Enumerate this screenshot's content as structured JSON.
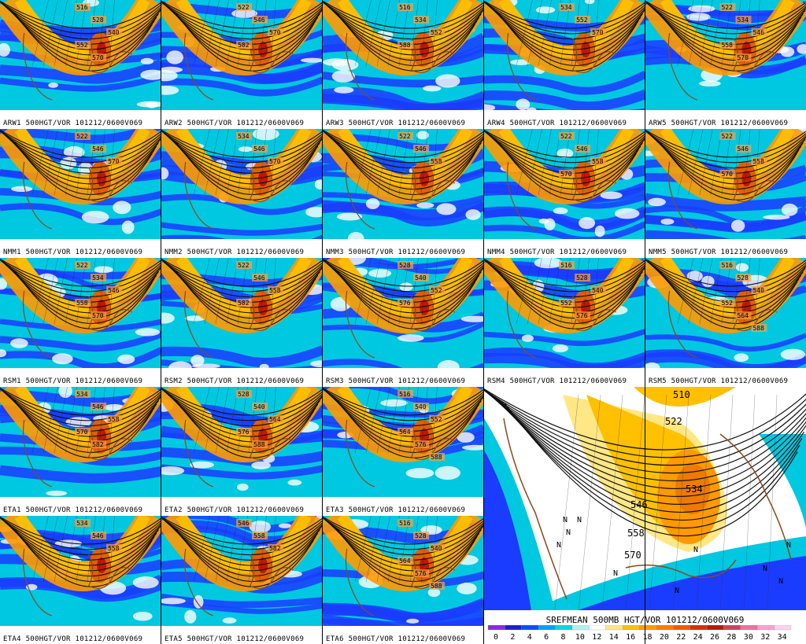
{
  "small_panels": [
    {
      "label": "ARW1 500HGT/VOR 101212/0600V069",
      "contours": [
        "516",
        "528",
        "540",
        "552",
        "570"
      ]
    },
    {
      "label": "ARW2 500HGT/VOR 101212/0600V069",
      "contours": [
        "522",
        "546",
        "570",
        "582"
      ]
    },
    {
      "label": "ARW3 500HGT/VOR 101212/0600V069",
      "contours": [
        "516",
        "534",
        "552",
        "588"
      ]
    },
    {
      "label": "ARW4 500HGT/VOR 101212/0600V069",
      "contours": [
        "534",
        "552",
        "570"
      ]
    },
    {
      "label": "ARW5 500HGT/VOR 101212/0600V069",
      "contours": [
        "522",
        "534",
        "546",
        "558",
        "570"
      ]
    },
    {
      "label": "NMM1 500HGT/VOR 101212/0600V069",
      "contours": [
        "522",
        "546",
        "570"
      ]
    },
    {
      "label": "NMM2 500HGT/VOR 101212/0600V069",
      "contours": [
        "534",
        "546",
        "570"
      ]
    },
    {
      "label": "NMM3 500HGT/VOR 101212/0600V069",
      "contours": [
        "522",
        "546",
        "558"
      ]
    },
    {
      "label": "NMM4 500HGT/VOR 101212/0600V069",
      "contours": [
        "522",
        "546",
        "558",
        "570"
      ]
    },
    {
      "label": "NMM5 500HGT/VOR 101212/0600V069",
      "contours": [
        "522",
        "546",
        "558",
        "570"
      ]
    },
    {
      "label": "RSM1 500HGT/VOR 101212/0600V069",
      "contours": [
        "522",
        "534",
        "546",
        "558",
        "570"
      ]
    },
    {
      "label": "RSM2 500HGT/VOR 101212/0600V069",
      "contours": [
        "522",
        "546",
        "558",
        "582"
      ]
    },
    {
      "label": "RSM3 500HGT/VOR 101212/0600V069",
      "contours": [
        "528",
        "540",
        "552",
        "576"
      ]
    },
    {
      "label": "RSM4 500HGT/VOR 101212/0600V069",
      "contours": [
        "516",
        "528",
        "540",
        "552",
        "576"
      ]
    },
    {
      "label": "RSM5 500HGT/VOR 101212/0600V069",
      "contours": [
        "516",
        "528",
        "540",
        "552",
        "564",
        "588"
      ]
    },
    {
      "label": "ETA1 500HGT/VOR 101212/0600V069",
      "contours": [
        "534",
        "546",
        "558",
        "570",
        "582"
      ]
    },
    {
      "label": "ETA2 500HGT/VOR 101212/0600V069",
      "contours": [
        "528",
        "540",
        "564",
        "576",
        "588"
      ]
    },
    {
      "label": "ETA3 500HGT/VOR 101212/0600V069",
      "contours": [
        "516",
        "540",
        "552",
        "564",
        "576",
        "588"
      ]
    },
    {
      "label": "ETA4 500HGT/VOR 101212/0600V069",
      "contours": [
        "534",
        "546",
        "558"
      ]
    },
    {
      "label": "ETA5 500HGT/VOR 101212/0600V069",
      "contours": [
        "546",
        "558",
        "582"
      ]
    },
    {
      "label": "ETA6 500HGT/VOR 101212/0600V069",
      "contours": [
        "516",
        "528",
        "540",
        "564",
        "576",
        "588"
      ]
    }
  ],
  "mean_panel": {
    "title": "SREFMEAN 500MB HGT/VOR 101212/0600V069",
    "contours": [
      "510",
      "522",
      "534",
      "546",
      "558",
      "570"
    ],
    "markers": [
      "N",
      "N",
      "N",
      "N",
      "N",
      "N",
      "N",
      "N",
      "N",
      "N"
    ]
  },
  "colorbar": {
    "ticks": [
      "0",
      "2",
      "4",
      "6",
      "8",
      "10",
      "12",
      "14",
      "16",
      "18",
      "20",
      "22",
      "24",
      "26",
      "28",
      "30",
      "32",
      "34"
    ],
    "colors": [
      "#8a2be2",
      "#1e1ed0",
      "#0050ff",
      "#00a0ff",
      "#00d8e0",
      "#b0f0f0",
      "#ffffff",
      "#ffe680",
      "#ffc000",
      "#ff9a00",
      "#ff7a00",
      "#ee5a00",
      "#d83000",
      "#b81a00",
      "#d04060",
      "#f070a0",
      "#ffa0d0",
      "#ffd0f0"
    ]
  }
}
